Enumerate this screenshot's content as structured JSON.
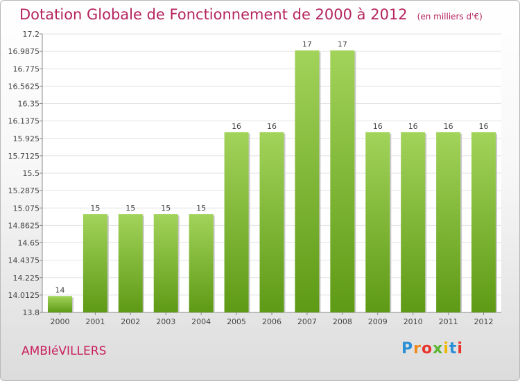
{
  "header": {
    "title": "Dotation Globale de Fonctionnement de 2000 à 2012",
    "subtitle": "(en milliers d'€)"
  },
  "footer": {
    "commune": "AMBIéVILLERS",
    "logo_letters": [
      "P",
      "r",
      "o",
      "x",
      "i",
      "t",
      "i"
    ]
  },
  "colors": {
    "bar_top": "#a2d35a",
    "bar_bottom": "#5e9a15",
    "title": "#b5235d"
  },
  "chart_data": {
    "type": "bar",
    "title": "Dotation Globale de Fonctionnement de 2000 à 2012",
    "subtitle": "(en milliers d'€)",
    "categories": [
      "2000",
      "2001",
      "2002",
      "2003",
      "2004",
      "2005",
      "2006",
      "2007",
      "2008",
      "2009",
      "2010",
      "2011",
      "2012"
    ],
    "values": [
      14,
      15,
      15,
      15,
      15,
      16,
      16,
      17,
      17,
      16,
      16,
      16,
      16
    ],
    "data_labels": [
      "14",
      "15",
      "15",
      "15",
      "15",
      "16",
      "16",
      "17",
      "17",
      "16",
      "16",
      "16",
      "16"
    ],
    "ylim": [
      13.8,
      17.2
    ],
    "yticks": [
      "13.8",
      "14.0125",
      "14.225",
      "14.4375",
      "14.65",
      "14.8625",
      "15.075",
      "15.2875",
      "15.5",
      "15.7125",
      "15.925",
      "16.1375",
      "16.35",
      "16.5625",
      "16.775",
      "16.9875",
      "17.2"
    ],
    "grid": true,
    "xlabel": "",
    "ylabel": ""
  }
}
